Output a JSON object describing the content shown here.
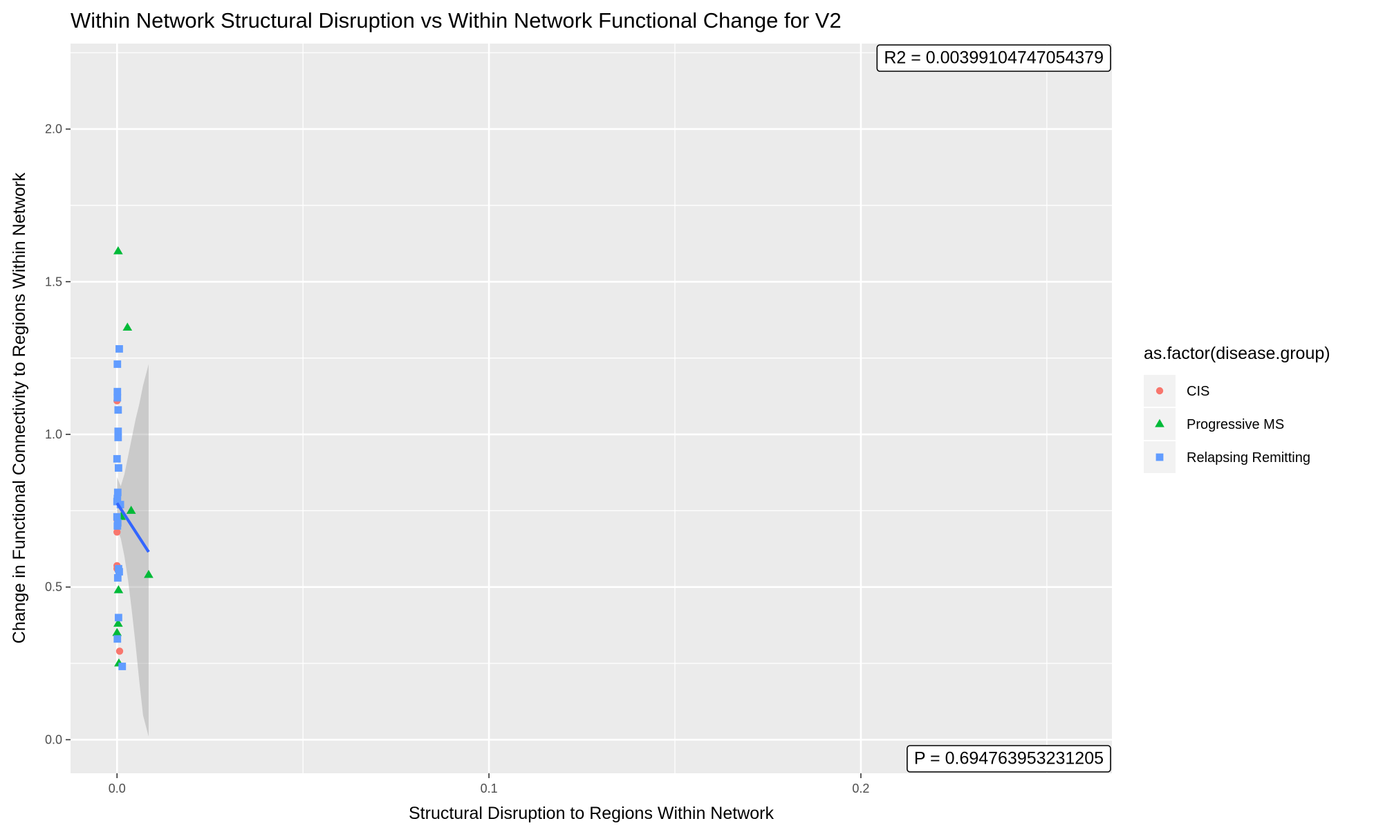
{
  "chart_data": {
    "type": "scatter",
    "title": "Within Network Structural Disruption vs Within Network Functional Change for V2",
    "xlabel": "Structural Disruption to Regions Within Network",
    "ylabel": "Change in Functional Connectivity to Regions Within Network",
    "xlim": [
      -0.0125,
      0.2675
    ],
    "ylim": [
      -0.11,
      2.28
    ],
    "x_ticks": [
      0.0,
      0.1,
      0.2
    ],
    "x_tick_labels": [
      "0.0",
      "0.1",
      "0.2"
    ],
    "y_ticks": [
      0.0,
      0.5,
      1.0,
      1.5,
      2.0
    ],
    "y_tick_labels": [
      "0.0",
      "0.5",
      "1.0",
      "1.5",
      "2.0"
    ],
    "grid": true,
    "legend": {
      "title": "as.factor(disease.group)",
      "position": "right"
    },
    "series": [
      {
        "name": "CIS",
        "marker": "circle",
        "color": "#F8766D",
        "points": [
          {
            "x": 0.0,
            "y": 1.11
          },
          {
            "x": 0.0,
            "y": 0.68
          },
          {
            "x": 0.0,
            "y": 0.57
          },
          {
            "x": 0.0,
            "y": 0.72
          },
          {
            "x": 0.0007,
            "y": 0.29
          },
          {
            "x": 0.0,
            "y": 0.56
          }
        ]
      },
      {
        "name": "Progressive MS",
        "marker": "triangle",
        "color": "#00BA38",
        "points": [
          {
            "x": 0.0003,
            "y": 1.6
          },
          {
            "x": 0.0028,
            "y": 1.35
          },
          {
            "x": 0.0038,
            "y": 0.75
          },
          {
            "x": 0.0011,
            "y": 0.73
          },
          {
            "x": 0.0085,
            "y": 0.54
          },
          {
            "x": 0.0004,
            "y": 0.49
          },
          {
            "x": 0.0003,
            "y": 0.38
          },
          {
            "x": 0.0,
            "y": 0.35
          },
          {
            "x": 0.0005,
            "y": 0.25
          }
        ]
      },
      {
        "name": "Relapsing Remitting",
        "marker": "square",
        "color": "#619CFF",
        "points": [
          {
            "x": 0.0006,
            "y": 1.28
          },
          {
            "x": 0.0001,
            "y": 1.23
          },
          {
            "x": 0.0001,
            "y": 1.14
          },
          {
            "x": 0.0001,
            "y": 1.12
          },
          {
            "x": 0.0003,
            "y": 1.08
          },
          {
            "x": 0.0003,
            "y": 1.01
          },
          {
            "x": 0.0003,
            "y": 0.99
          },
          {
            "x": 0.0,
            "y": 0.92
          },
          {
            "x": 0.0004,
            "y": 0.89
          },
          {
            "x": 0.0002,
            "y": 0.81
          },
          {
            "x": 0.0001,
            "y": 0.79
          },
          {
            "x": 0.0,
            "y": 0.78
          },
          {
            "x": 0.0009,
            "y": 0.77
          },
          {
            "x": 0.0,
            "y": 0.73
          },
          {
            "x": 0.0002,
            "y": 0.71
          },
          {
            "x": 0.0001,
            "y": 0.7
          },
          {
            "x": 0.0004,
            "y": 0.56
          },
          {
            "x": 0.0006,
            "y": 0.55
          },
          {
            "x": 0.0002,
            "y": 0.53
          },
          {
            "x": 0.0004,
            "y": 0.4
          },
          {
            "x": 0.0001,
            "y": 0.33
          },
          {
            "x": 0.0014,
            "y": 0.24
          }
        ]
      }
    ],
    "fit_line": {
      "color": "#3366FF",
      "x": [
        0.0,
        0.0085
      ],
      "y": [
        0.775,
        0.615
      ]
    },
    "confidence_band": {
      "color": "#999999",
      "x": [
        0.0,
        0.001,
        0.002,
        0.003,
        0.004,
        0.005,
        0.006,
        0.007,
        0.0085
      ],
      "lower": [
        0.69,
        0.66,
        0.6,
        0.52,
        0.42,
        0.31,
        0.19,
        0.08,
        0.01
      ],
      "upper": [
        0.86,
        0.83,
        0.87,
        0.93,
        0.99,
        1.05,
        1.1,
        1.16,
        1.23
      ]
    },
    "annotations": {
      "r2": "R2 =  0.00399104747054379",
      "p": "P =  0.694763953231205"
    }
  }
}
